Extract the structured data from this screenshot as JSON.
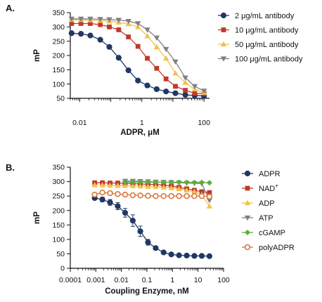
{
  "chart_data": [
    {
      "type": "scatter",
      "panel_label": "A.",
      "xlabel": "ADPR, μM",
      "ylabel": "mP",
      "xscale": "log",
      "xlim": [
        0.005,
        150
      ],
      "ylim": [
        50,
        350
      ],
      "xticks": [
        0.01,
        1,
        100
      ],
      "xtick_labels": [
        "0.01",
        "1",
        "100"
      ],
      "yticks": [
        50,
        100,
        150,
        200,
        250,
        300,
        350
      ],
      "ytick_labels": [
        "50",
        "100",
        "150",
        "200",
        "250",
        "300",
        "350"
      ],
      "legend_position": "right",
      "x": [
        0.0055,
        0.011,
        0.022,
        0.046,
        0.09,
        0.18,
        0.37,
        0.75,
        1.5,
        3.0,
        6.0,
        12,
        25,
        50,
        100
      ],
      "series": [
        {
          "name": "2 μg/mL antibody",
          "color": "#1f3864",
          "marker": "circle",
          "values": [
            278,
            276,
            270,
            255,
            230,
            192,
            148,
            112,
            95,
            82,
            74,
            68,
            62,
            60,
            58
          ]
        },
        {
          "name": "10 μg/mL antibody",
          "color": "#c0392b",
          "marker": "square",
          "values": [
            312,
            312,
            312,
            308,
            300,
            290,
            265,
            232,
            190,
            155,
            118,
            92,
            78,
            68,
            66
          ]
        },
        {
          "name": "50 μg/mL antibody",
          "color": "#f2c14e",
          "marker": "triangle-up",
          "values": [
            325,
            325,
            324,
            322,
            320,
            316,
            310,
            300,
            268,
            230,
            190,
            138,
            105,
            82,
            70
          ]
        },
        {
          "name": "100 μg/mL antibody",
          "color": "#808080",
          "marker": "triangle-down",
          "values": [
            328,
            328,
            328,
            327,
            326,
            324,
            320,
            312,
            290,
            262,
            222,
            178,
            122,
            92,
            76
          ]
        }
      ]
    },
    {
      "type": "scatter",
      "panel_label": "B.",
      "xlabel": "Coupling Enzyme, nM",
      "ylabel": "mP",
      "xscale": "log",
      "xlim": [
        0.0001,
        100
      ],
      "ylim": [
        0,
        350
      ],
      "xticks": [
        0.0001,
        0.001,
        0.01,
        0.1,
        1,
        10,
        100
      ],
      "xtick_labels": [
        "0.0001",
        "0.001",
        "0.01",
        "0.1",
        "1",
        "10",
        "100"
      ],
      "yticks": [
        0,
        50,
        100,
        150,
        200,
        250,
        300,
        350
      ],
      "ytick_labels": [
        "0",
        "50",
        "100",
        "150",
        "200",
        "250",
        "300",
        "350"
      ],
      "legend_position": "right",
      "x": [
        0.0009,
        0.0018,
        0.0036,
        0.0072,
        0.014,
        0.028,
        0.055,
        0.11,
        0.22,
        0.45,
        0.9,
        1.8,
        3.6,
        7.2,
        14,
        28
      ],
      "series": [
        {
          "name": "ADPR",
          "color": "#1f3864",
          "marker": "circle",
          "values": [
            243,
            238,
            228,
            215,
            192,
            165,
            128,
            90,
            70,
            55,
            48,
            45,
            44,
            43,
            43,
            42
          ],
          "errors": [
            5,
            8,
            10,
            12,
            15,
            20,
            18,
            10,
            5,
            3,
            2,
            2,
            2,
            2,
            2,
            2
          ]
        },
        {
          "name": "NAD+",
          "color": "#c0392b",
          "marker": "square",
          "values": [
            296,
            296,
            295,
            295,
            294,
            293,
            292,
            291,
            290,
            288,
            285,
            280,
            275,
            270,
            265,
            262
          ]
        },
        {
          "name": "ADP",
          "color": "#f2c14e",
          "marker": "triangle-up",
          "values": [
            288,
            288,
            287,
            286,
            286,
            285,
            284,
            283,
            282,
            280,
            278,
            275,
            270,
            265,
            255,
            215
          ]
        },
        {
          "name": "ATP",
          "color": "#808080",
          "marker": "triangle-down",
          "values": [
            null,
            null,
            null,
            null,
            302,
            302,
            301,
            300,
            299,
            298,
            297,
            296,
            295,
            294,
            293,
            235
          ]
        },
        {
          "name": "cGAMP",
          "color": "#5cae3a",
          "marker": "diamond",
          "values": [
            null,
            null,
            null,
            null,
            298,
            298,
            298,
            298,
            298,
            298,
            298,
            298,
            297,
            297,
            297,
            296
          ]
        },
        {
          "name": "polyADPR",
          "color": "#d9763b",
          "marker": "circle-open",
          "values": [
            255,
            262,
            260,
            257,
            255,
            253,
            252,
            251,
            250,
            250,
            250,
            250,
            250,
            250,
            250,
            248
          ]
        }
      ]
    }
  ]
}
